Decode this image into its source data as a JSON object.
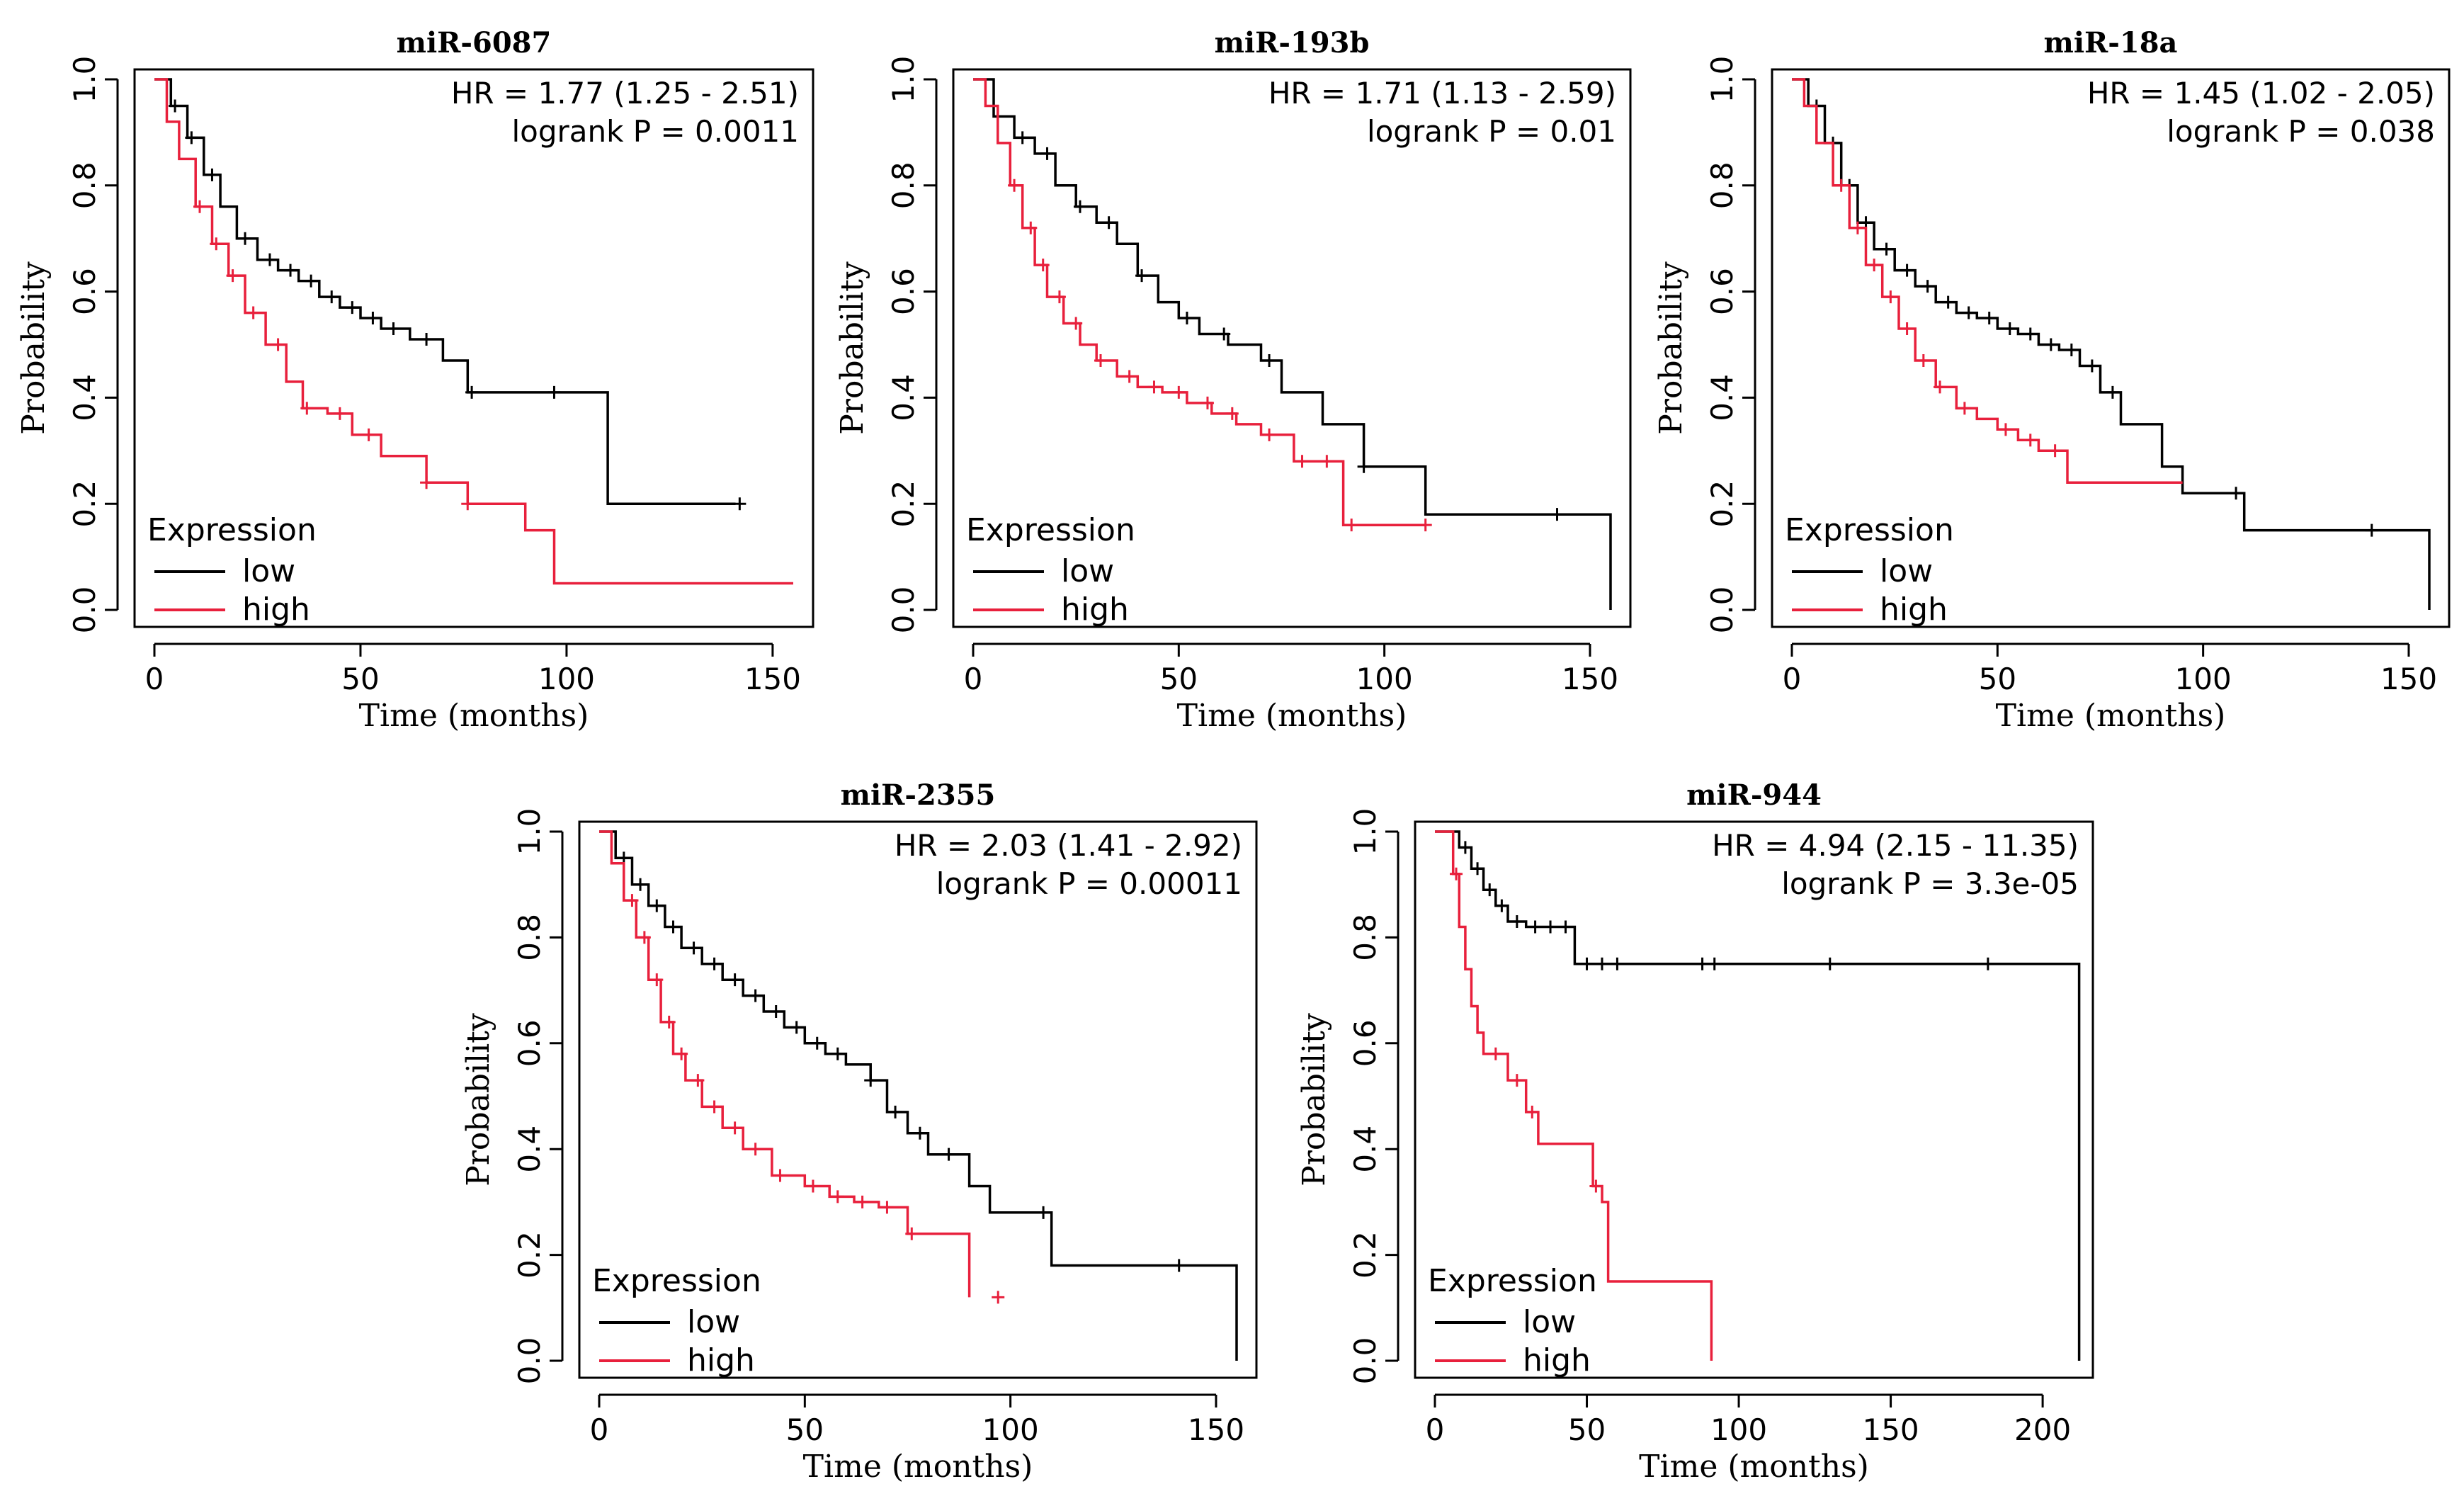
{
  "colors": {
    "low": "#000000",
    "high": "#e8203c"
  },
  "chart_data": [
    {
      "type": "line",
      "title": "miR-6087",
      "xlabel": "Time (months)",
      "ylabel": "Probability",
      "xlim": [
        0,
        155
      ],
      "ylim": [
        0,
        1
      ],
      "xticks": [
        "0",
        "50",
        "100",
        "150"
      ],
      "yticks": [
        "0.0",
        "0.2",
        "0.4",
        "0.6",
        "0.8",
        "1.0"
      ],
      "stats": {
        "hr": "HR = 1.77 (1.25 - 2.51)",
        "logrank": "logrank P = 0.0011"
      },
      "legend": {
        "title": "Expression",
        "items": [
          "low",
          "high"
        ],
        "position": "bottom-left"
      },
      "series": [
        {
          "name": "low",
          "x": [
            0,
            4,
            8,
            12,
            16,
            20,
            25,
            30,
            35,
            40,
            45,
            50,
            55,
            62,
            70,
            76,
            110,
            141
          ],
          "y": [
            1.0,
            0.95,
            0.89,
            0.82,
            0.76,
            0.7,
            0.66,
            0.64,
            0.62,
            0.59,
            0.57,
            0.55,
            0.53,
            0.51,
            0.47,
            0.41,
            0.2,
            0.2
          ],
          "censor": [
            5,
            9,
            14,
            22,
            28,
            33,
            38,
            43,
            48,
            53,
            58,
            66,
            77,
            97,
            142
          ]
        },
        {
          "name": "high",
          "x": [
            0,
            3,
            6,
            10,
            14,
            18,
            22,
            27,
            32,
            36,
            42,
            48,
            55,
            66,
            76,
            90,
            97,
            155
          ],
          "y": [
            1.0,
            0.92,
            0.85,
            0.76,
            0.69,
            0.63,
            0.56,
            0.5,
            0.43,
            0.38,
            0.37,
            0.33,
            0.29,
            0.24,
            0.2,
            0.15,
            0.05,
            0.05
          ],
          "censor": [
            11,
            15,
            19,
            24,
            30,
            37,
            45,
            52,
            66,
            76
          ]
        }
      ]
    },
    {
      "type": "line",
      "title": "miR-193b",
      "xlabel": "Time (months)",
      "ylabel": "Probability",
      "xlim": [
        0,
        155
      ],
      "ylim": [
        0,
        1
      ],
      "xticks": [
        "0",
        "50",
        "100",
        "150"
      ],
      "yticks": [
        "0.0",
        "0.2",
        "0.4",
        "0.6",
        "0.8",
        "1.0"
      ],
      "stats": {
        "hr": "HR = 1.71 (1.13 - 2.59)",
        "logrank": "logrank P = 0.01"
      },
      "legend": {
        "title": "Expression",
        "items": [
          "low",
          "high"
        ],
        "position": "bottom-left"
      },
      "series": [
        {
          "name": "low",
          "x": [
            0,
            5,
            10,
            15,
            20,
            25,
            30,
            35,
            40,
            45,
            50,
            55,
            62,
            70,
            75,
            85,
            95,
            110,
            155
          ],
          "y": [
            1.0,
            0.93,
            0.89,
            0.86,
            0.8,
            0.76,
            0.73,
            0.69,
            0.63,
            0.58,
            0.55,
            0.52,
            0.5,
            0.47,
            0.41,
            0.35,
            0.27,
            0.18,
            0.0
          ],
          "censor": [
            12,
            18,
            26,
            33,
            41,
            52,
            61,
            72,
            95,
            142
          ]
        },
        {
          "name": "high",
          "x": [
            0,
            3,
            6,
            9,
            12,
            15,
            18,
            22,
            26,
            30,
            35,
            40,
            46,
            52,
            58,
            64,
            70,
            78,
            90,
            110
          ],
          "y": [
            1.0,
            0.95,
            0.88,
            0.8,
            0.72,
            0.65,
            0.59,
            0.54,
            0.5,
            0.47,
            0.44,
            0.42,
            0.41,
            0.39,
            0.37,
            0.35,
            0.33,
            0.28,
            0.16,
            0.16
          ],
          "censor": [
            10,
            14,
            17,
            21,
            25,
            31,
            38,
            44,
            50,
            57,
            63,
            72,
            80,
            86,
            92,
            110
          ]
        }
      ]
    },
    {
      "type": "line",
      "title": "miR-18a",
      "xlabel": "Time (months)",
      "ylabel": "Probability",
      "xlim": [
        0,
        155
      ],
      "ylim": [
        0,
        1
      ],
      "xticks": [
        "0",
        "50",
        "100",
        "150"
      ],
      "yticks": [
        "0.0",
        "0.2",
        "0.4",
        "0.6",
        "0.8",
        "1.0"
      ],
      "stats": {
        "hr": "HR = 1.45 (1.02 - 2.05)",
        "logrank": "logrank P = 0.038"
      },
      "legend": {
        "title": "Expression",
        "items": [
          "low",
          "high"
        ],
        "position": "bottom-left"
      },
      "series": [
        {
          "name": "low",
          "x": [
            0,
            4,
            8,
            12,
            16,
            20,
            25,
            30,
            35,
            40,
            45,
            50,
            55,
            60,
            65,
            70,
            75,
            80,
            90,
            95,
            110,
            155
          ],
          "y": [
            1.0,
            0.95,
            0.88,
            0.8,
            0.73,
            0.68,
            0.64,
            0.61,
            0.58,
            0.56,
            0.55,
            0.53,
            0.52,
            0.5,
            0.49,
            0.46,
            0.41,
            0.35,
            0.27,
            0.22,
            0.15,
            0.0
          ],
          "censor": [
            6,
            10,
            14,
            18,
            23,
            28,
            33,
            38,
            43,
            48,
            53,
            58,
            63,
            68,
            73,
            78,
            108,
            141
          ]
        },
        {
          "name": "high",
          "x": [
            0,
            3,
            6,
            10,
            14,
            18,
            22,
            26,
            30,
            35,
            40,
            45,
            50,
            55,
            60,
            67,
            95
          ],
          "y": [
            1.0,
            0.95,
            0.88,
            0.8,
            0.72,
            0.65,
            0.59,
            0.53,
            0.47,
            0.42,
            0.38,
            0.36,
            0.34,
            0.32,
            0.3,
            0.24,
            0.24
          ],
          "censor": [
            12,
            16,
            20,
            24,
            28,
            32,
            36,
            42,
            52,
            58,
            64
          ]
        }
      ]
    },
    {
      "type": "line",
      "title": "miR-2355",
      "xlabel": "Time (months)",
      "ylabel": "Probability",
      "xlim": [
        0,
        155
      ],
      "ylim": [
        0,
        1
      ],
      "xticks": [
        "0",
        "50",
        "100",
        "150"
      ],
      "yticks": [
        "0.0",
        "0.2",
        "0.4",
        "0.6",
        "0.8",
        "1.0"
      ],
      "stats": {
        "hr": "HR = 2.03 (1.41 - 2.92)",
        "logrank": "logrank P = 0.00011"
      },
      "legend": {
        "title": "Expression",
        "items": [
          "low",
          "high"
        ],
        "position": "bottom-left"
      },
      "series": [
        {
          "name": "low",
          "x": [
            0,
            4,
            8,
            12,
            16,
            20,
            25,
            30,
            35,
            40,
            45,
            50,
            55,
            60,
            66,
            70,
            75,
            80,
            90,
            95,
            110,
            155
          ],
          "y": [
            1.0,
            0.95,
            0.9,
            0.86,
            0.82,
            0.78,
            0.75,
            0.72,
            0.69,
            0.66,
            0.63,
            0.6,
            0.58,
            0.56,
            0.53,
            0.47,
            0.43,
            0.39,
            0.33,
            0.28,
            0.18,
            0.0
          ],
          "censor": [
            6,
            10,
            14,
            18,
            23,
            28,
            33,
            38,
            43,
            48,
            53,
            58,
            66,
            72,
            78,
            85,
            108,
            141
          ]
        },
        {
          "name": "high",
          "x": [
            0,
            3,
            6,
            9,
            12,
            15,
            18,
            21,
            25,
            30,
            35,
            42,
            50,
            56,
            62,
            68,
            75,
            90
          ],
          "y": [
            1.0,
            0.94,
            0.87,
            0.8,
            0.72,
            0.64,
            0.58,
            0.53,
            0.48,
            0.44,
            0.4,
            0.35,
            0.33,
            0.31,
            0.3,
            0.29,
            0.24,
            0.12
          ],
          "censor": [
            8,
            11,
            14,
            17,
            20,
            24,
            28,
            33,
            38,
            44,
            52,
            58,
            64,
            70,
            76,
            97
          ]
        }
      ]
    },
    {
      "type": "line",
      "title": "miR-944",
      "xlabel": "Time (months)",
      "ylabel": "Probability",
      "xlim": [
        0,
        210
      ],
      "ylim": [
        0,
        1
      ],
      "xticks": [
        "0",
        "50",
        "100",
        "150",
        "200"
      ],
      "yticks": [
        "0.0",
        "0.2",
        "0.4",
        "0.6",
        "0.8",
        "1.0"
      ],
      "stats": {
        "hr": "HR = 4.94 (2.15 - 11.35)",
        "logrank": "logrank P = 3.3e-05"
      },
      "legend": {
        "title": "Expression",
        "items": [
          "low",
          "high"
        ],
        "position": "bottom-left"
      },
      "series": [
        {
          "name": "low",
          "x": [
            0,
            8,
            12,
            16,
            20,
            24,
            30,
            46,
            212
          ],
          "y": [
            1.0,
            0.97,
            0.93,
            0.89,
            0.86,
            0.83,
            0.82,
            0.75,
            0.0
          ],
          "censor": [
            10,
            14,
            18,
            22,
            27,
            33,
            38,
            43,
            50,
            55,
            60,
            88,
            92,
            130,
            182
          ]
        },
        {
          "name": "high",
          "x": [
            0,
            6,
            8,
            10,
            12,
            14,
            16,
            24,
            30,
            34,
            52,
            55,
            57,
            91
          ],
          "y": [
            1.0,
            0.92,
            0.82,
            0.74,
            0.67,
            0.62,
            0.58,
            0.53,
            0.47,
            0.41,
            0.33,
            0.3,
            0.15,
            0.0
          ],
          "censor": [
            7,
            20,
            27,
            32,
            53
          ]
        }
      ]
    }
  ]
}
